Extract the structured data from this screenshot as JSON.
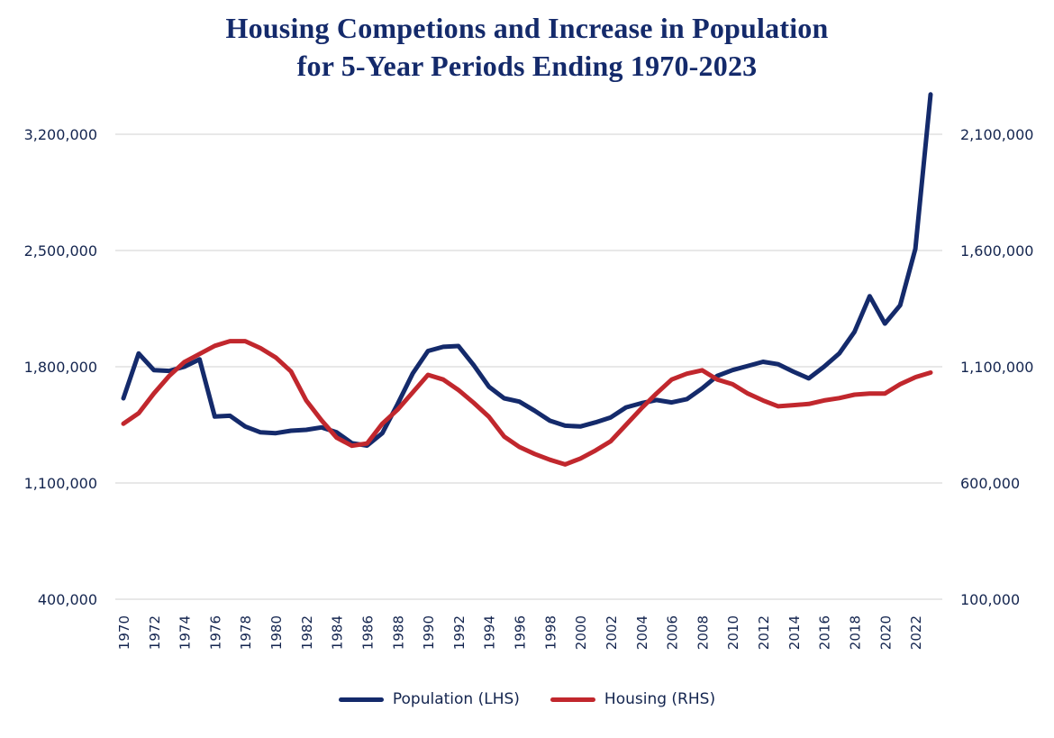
{
  "title_line1": "Housing Competions and Increase in Population",
  "title_line2": "for 5-Year Periods Ending 1970-2023",
  "chart_data": {
    "type": "line",
    "title": "Housing Competions and Increase in Population for 5-Year Periods Ending 1970-2023",
    "x": [
      1970,
      1971,
      1972,
      1973,
      1974,
      1975,
      1976,
      1977,
      1978,
      1979,
      1980,
      1981,
      1982,
      1983,
      1984,
      1985,
      1986,
      1987,
      1988,
      1989,
      1990,
      1991,
      1992,
      1993,
      1994,
      1995,
      1996,
      1997,
      1998,
      1999,
      2000,
      2001,
      2002,
      2003,
      2004,
      2005,
      2006,
      2007,
      2008,
      2009,
      2010,
      2011,
      2012,
      2013,
      2014,
      2015,
      2016,
      2017,
      2018,
      2019,
      2020,
      2021,
      2022,
      2023
    ],
    "x_tick_labels": [
      "1970",
      "1972",
      "1974",
      "1976",
      "1978",
      "1980",
      "1982",
      "1984",
      "1986",
      "1988",
      "1990",
      "1992",
      "1994",
      "1996",
      "1998",
      "2000",
      "2002",
      "2004",
      "2006",
      "2008",
      "2010",
      "2012",
      "2014",
      "2016",
      "2018",
      "2020",
      "2022"
    ],
    "left_axis": {
      "ylim": [
        400000,
        3200000
      ],
      "ticks": [
        400000,
        1100000,
        1800000,
        2500000,
        3200000
      ],
      "tick_labels": [
        "400,000",
        "1,100,000",
        "1,800,000",
        "2,500,000",
        "3,200,000"
      ]
    },
    "right_axis": {
      "ylim": [
        100000,
        2100000
      ],
      "ticks": [
        100000,
        600000,
        1100000,
        1600000,
        2100000
      ],
      "tick_labels": [
        "100,000",
        "600,000",
        "1,100,000",
        "1,600,000",
        "2,100,000"
      ]
    },
    "series": [
      {
        "name": "Population (LHS)",
        "axis": "left",
        "color": "#142a6b",
        "values": [
          1610000,
          1880000,
          1780000,
          1775000,
          1800000,
          1845000,
          1500000,
          1505000,
          1440000,
          1405000,
          1400000,
          1415000,
          1420000,
          1435000,
          1405000,
          1340000,
          1325000,
          1400000,
          1575000,
          1760000,
          1895000,
          1920000,
          1925000,
          1810000,
          1680000,
          1610000,
          1590000,
          1535000,
          1475000,
          1445000,
          1440000,
          1465000,
          1495000,
          1555000,
          1580000,
          1600000,
          1585000,
          1605000,
          1670000,
          1745000,
          1780000,
          1805000,
          1830000,
          1815000,
          1770000,
          1730000,
          1800000,
          1880000,
          2010000,
          2225000,
          2060000,
          2170000,
          2510000,
          3440000
        ]
      },
      {
        "name": "Housing (RHS)",
        "axis": "right",
        "color": "#c1272d",
        "values": [
          855000,
          900000,
          985000,
          1060000,
          1120000,
          1155000,
          1190000,
          1210000,
          1210000,
          1180000,
          1140000,
          1080000,
          955000,
          870000,
          795000,
          760000,
          770000,
          855000,
          915000,
          990000,
          1065000,
          1045000,
          1000000,
          945000,
          885000,
          800000,
          755000,
          725000,
          700000,
          680000,
          705000,
          740000,
          780000,
          850000,
          920000,
          985000,
          1045000,
          1070000,
          1085000,
          1045000,
          1025000,
          985000,
          955000,
          930000,
          935000,
          940000,
          955000,
          965000,
          980000,
          985000,
          985000,
          1025000,
          1055000,
          1075000
        ]
      }
    ],
    "grid": true,
    "legend_placement": "bottom-center"
  }
}
